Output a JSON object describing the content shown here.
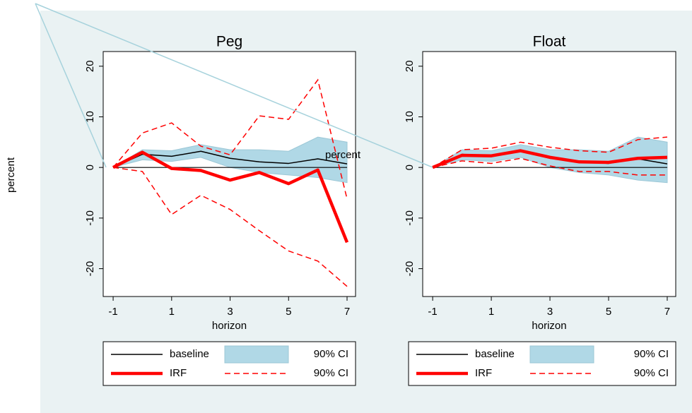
{
  "chart_data": [
    {
      "type": "line",
      "title": "Peg",
      "xlabel": "horizon",
      "ylabel": "percent",
      "x": [
        -1,
        0,
        1,
        2,
        3,
        4,
        5,
        6,
        7
      ],
      "xlim": [
        -1.34,
        7.29
      ],
      "xticks": [
        -1,
        1,
        3,
        5,
        7
      ],
      "ylim": [
        -25.5,
        22.9
      ],
      "yticks": [
        -20,
        -10,
        0,
        10,
        20
      ],
      "series": [
        {
          "name": "baseline",
          "color": "#000000",
          "style": "line",
          "values": [
            0,
            2.6,
            2.2,
            3.2,
            1.8,
            1.1,
            0.8,
            1.7,
            0.7
          ]
        },
        {
          "name": "90% CI",
          "color": "#b0d8e6",
          "style": "band",
          "upper": [
            0,
            3.5,
            3.3,
            4.5,
            3.5,
            3.5,
            3.2,
            6,
            5
          ],
          "lower": [
            0,
            1.5,
            1.2,
            2,
            0,
            -1,
            -1.5,
            -2,
            -3
          ]
        },
        {
          "name": "IRF",
          "color": "#ff0000",
          "style": "thick",
          "values": [
            0,
            3,
            -0.2,
            -0.6,
            -2.5,
            -1,
            -3.2,
            -0.5,
            -14.8
          ]
        },
        {
          "name": "90% CI",
          "color": "#ff0000",
          "style": "dashed",
          "upper": [
            0,
            6.8,
            8.8,
            4.2,
            2.5,
            10.2,
            9.5,
            17.3,
            -6.2
          ],
          "lower": [
            0,
            -0.8,
            -9.3,
            -5.5,
            -8.3,
            -12.5,
            -16.5,
            -18.5,
            -23.5
          ]
        }
      ]
    },
    {
      "type": "line",
      "title": "Float",
      "xlabel": "horizon",
      "ylabel": "percent",
      "x": [
        -1,
        0,
        1,
        2,
        3,
        4,
        5,
        6,
        7
      ],
      "xlim": [
        -1.34,
        7.29
      ],
      "xticks": [
        -1,
        1,
        3,
        5,
        7
      ],
      "ylim": [
        -25.5,
        22.9
      ],
      "yticks": [
        -20,
        -10,
        0,
        10,
        20
      ],
      "series": [
        {
          "name": "baseline",
          "color": "#000000",
          "style": "line",
          "values": [
            0,
            2.6,
            2.2,
            3.2,
            1.8,
            1.1,
            0.8,
            1.7,
            0.7
          ]
        },
        {
          "name": "90% CI",
          "color": "#b0d8e6",
          "style": "band",
          "upper": [
            0,
            3.5,
            3.3,
            4.5,
            3.5,
            3.5,
            3.2,
            6,
            5
          ],
          "lower": [
            0,
            1.5,
            1.2,
            2,
            0,
            -1,
            -1.5,
            -2.5,
            -3
          ]
        },
        {
          "name": "IRF",
          "color": "#ff0000",
          "style": "thick",
          "values": [
            0,
            2.4,
            2.3,
            3.3,
            2,
            1.1,
            1,
            1.8,
            2
          ]
        },
        {
          "name": "90% CI",
          "color": "#ff0000",
          "style": "dashed",
          "upper": [
            0,
            3.5,
            3.8,
            5,
            4,
            3.3,
            3,
            5.5,
            6
          ],
          "lower": [
            0,
            1.3,
            0.8,
            1.8,
            0.3,
            -0.8,
            -0.8,
            -1.5,
            -1.5
          ]
        }
      ]
    }
  ]
}
